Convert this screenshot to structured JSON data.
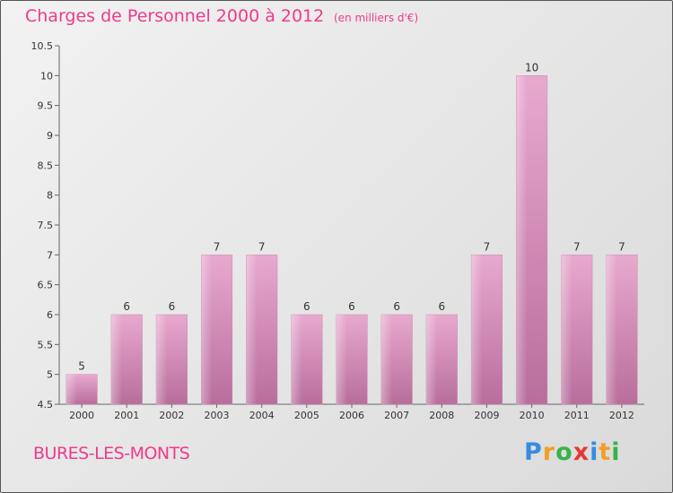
{
  "title": "Charges de Personnel 2000 à 2012",
  "subtitle": "(en milliers d'€)",
  "commune": "BURES-LES-MONTS",
  "logo": {
    "p": "P",
    "r": "r",
    "o": "o",
    "x": "x",
    "i": "i",
    "t": "t",
    "i2": "i"
  },
  "colors": {
    "title": "#ee3a8c",
    "bar_top": "#e8a9cf",
    "bar_bottom": "#b86e9c"
  },
  "chart_data": {
    "type": "bar",
    "categories": [
      "2000",
      "2001",
      "2002",
      "2003",
      "2004",
      "2005",
      "2006",
      "2007",
      "2008",
      "2009",
      "2010",
      "2011",
      "2012"
    ],
    "values": [
      5,
      6,
      6,
      7,
      7,
      6,
      6,
      6,
      6,
      7,
      10,
      7,
      7
    ],
    "value_labels": [
      "5",
      "6",
      "6",
      "7",
      "7",
      "6",
      "6",
      "6",
      "6",
      "7",
      "10",
      "7",
      "7"
    ],
    "ylim": [
      4.5,
      10.5
    ],
    "yticks": [
      "4.5",
      "5",
      "5.5",
      "6",
      "6.5",
      "7",
      "7.5",
      "8",
      "8.5",
      "9",
      "9.5",
      "10",
      "10.5"
    ],
    "grid": false
  }
}
